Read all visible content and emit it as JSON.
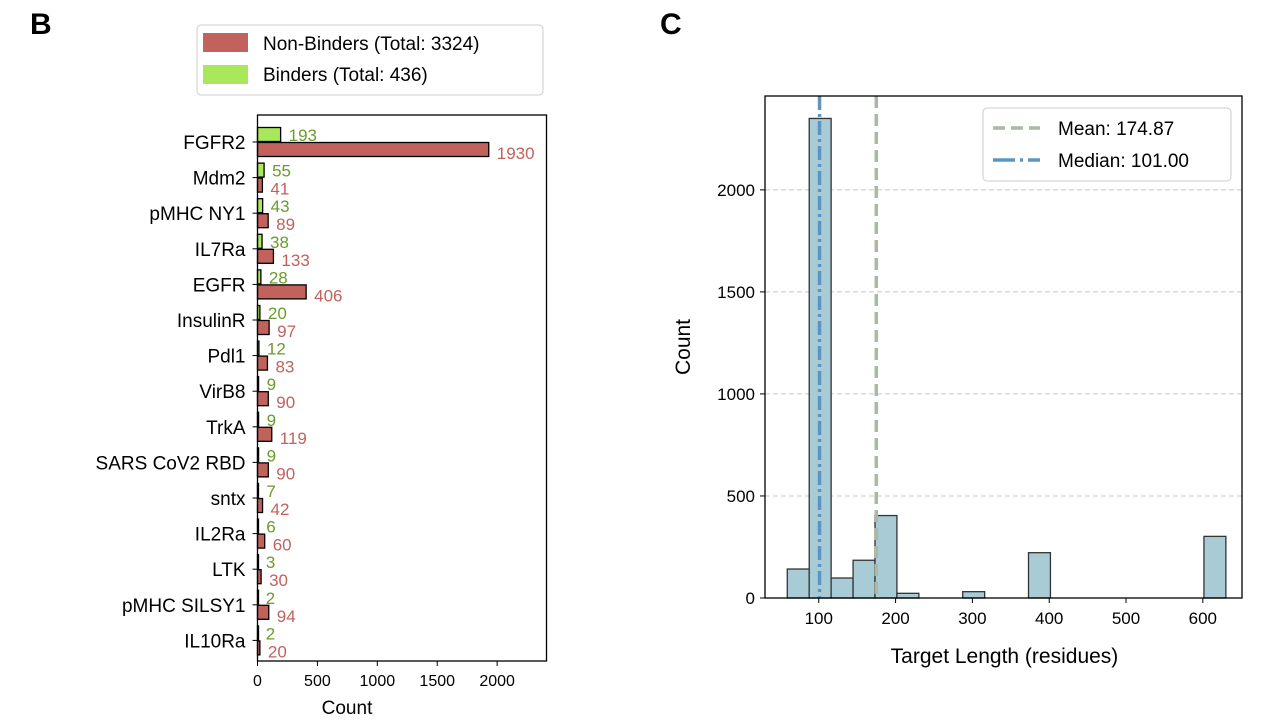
{
  "chart_data": [
    {
      "type": "bar",
      "orientation": "horizontal",
      "panel_label": "B",
      "xlabel": "Count",
      "xlim": [
        0,
        2412
      ],
      "xticks": [
        0,
        500,
        1000,
        1500,
        2000
      ],
      "categories": [
        "FGFR2",
        "Mdm2",
        "pMHC NY1",
        "IL7Ra",
        "EGFR",
        "InsulinR",
        "Pdl1",
        "VirB8",
        "TrkA",
        "SARS CoV2 RBD",
        "sntx",
        "IL2Ra",
        "LTK",
        "pMHC SILSY1",
        "IL10Ra"
      ],
      "series": [
        {
          "name": "Binders (Total: 436)",
          "color": "#a9e85b",
          "label_color": "#6b9b2b",
          "values": [
            193,
            55,
            43,
            38,
            28,
            20,
            12,
            9,
            9,
            9,
            7,
            6,
            3,
            2,
            2
          ]
        },
        {
          "name": "Non-Binders (Total: 3324)",
          "color": "#c1625d",
          "label_color": "#c1625d",
          "values": [
            1930,
            41,
            89,
            133,
            406,
            97,
            83,
            90,
            119,
            90,
            42,
            60,
            30,
            94,
            20
          ]
        }
      ],
      "legend": {
        "position": "top",
        "entries": [
          "Non-Binders (Total: 3324)",
          "Binders (Total: 436)"
        ]
      }
    },
    {
      "type": "histogram",
      "panel_label": "C",
      "xlabel": "Target Length (residues)",
      "ylabel": "Count",
      "xlim": [
        30,
        651
      ],
      "ylim": [
        0,
        2460
      ],
      "xticks": [
        100,
        200,
        300,
        400,
        500,
        600
      ],
      "yticks": [
        0,
        500,
        1000,
        1500,
        2000
      ],
      "grid": "y-dashed",
      "bin_start": 59,
      "bin_width": 28.55,
      "counts": [
        142,
        2350,
        98,
        185,
        404,
        23,
        0,
        0,
        31,
        0,
        0,
        222,
        0,
        0,
        0,
        0,
        0,
        0,
        0,
        302
      ],
      "bar_color": "#a8cbd6",
      "lines": [
        {
          "name": "Mean: 174.87",
          "x": 174.87,
          "style": "dashed",
          "color": "#a9b9a3"
        },
        {
          "name": "Median: 101.00",
          "x": 101.0,
          "style": "dashdot",
          "color": "#5d95c2"
        }
      ],
      "legend": {
        "position": "top-right"
      }
    }
  ]
}
